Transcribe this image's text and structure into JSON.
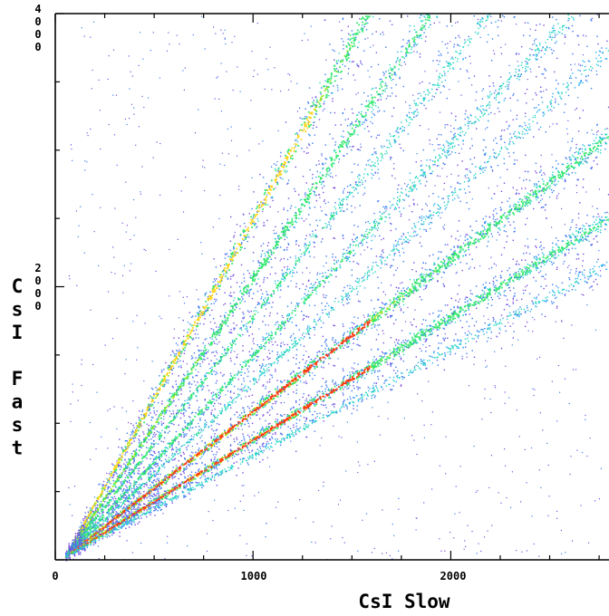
{
  "chart_data": {
    "type": "heatmap",
    "title": "",
    "xlabel": "CsI Slow",
    "ylabel": "CsI Fast",
    "xlim": [
      0,
      2800
    ],
    "ylim": [
      0,
      4000
    ],
    "x_ticks": [
      0,
      1000,
      2000
    ],
    "y_ticks": [
      2000,
      4000
    ],
    "x_tick_labels": [
      "0",
      "1000",
      "2000"
    ],
    "y_tick_labels": [
      "2000",
      "4000"
    ],
    "grid": false,
    "legend": "none",
    "colormap": [
      "#ffffff",
      "#7a4de0",
      "#3f7cf2",
      "#2fb2f0",
      "#27d8c2",
      "#36e870",
      "#9ce81e",
      "#ffd51a",
      "#ff3a10"
    ],
    "bands": [
      {
        "label": "",
        "slope": 2.6,
        "width": 0.07,
        "intensity": 0.9
      },
      {
        "label": "",
        "slope": 2.15,
        "width": 0.06,
        "intensity": 0.75
      },
      {
        "label": "",
        "slope": 1.85,
        "width": 0.05,
        "intensity": 0.55
      },
      {
        "label": "",
        "slope": 1.55,
        "width": 0.06,
        "intensity": 0.6
      },
      {
        "label": "",
        "slope": 1.35,
        "width": 0.05,
        "intensity": 0.45
      },
      {
        "label": "",
        "slope": 1.12,
        "width": 0.05,
        "intensity": 1.0
      },
      {
        "label": "",
        "slope": 0.9,
        "width": 0.05,
        "intensity": 0.95
      },
      {
        "label": "",
        "slope": 0.78,
        "width": 0.05,
        "intensity": 0.4
      }
    ],
    "origin": [
      50,
      30
    ]
  }
}
